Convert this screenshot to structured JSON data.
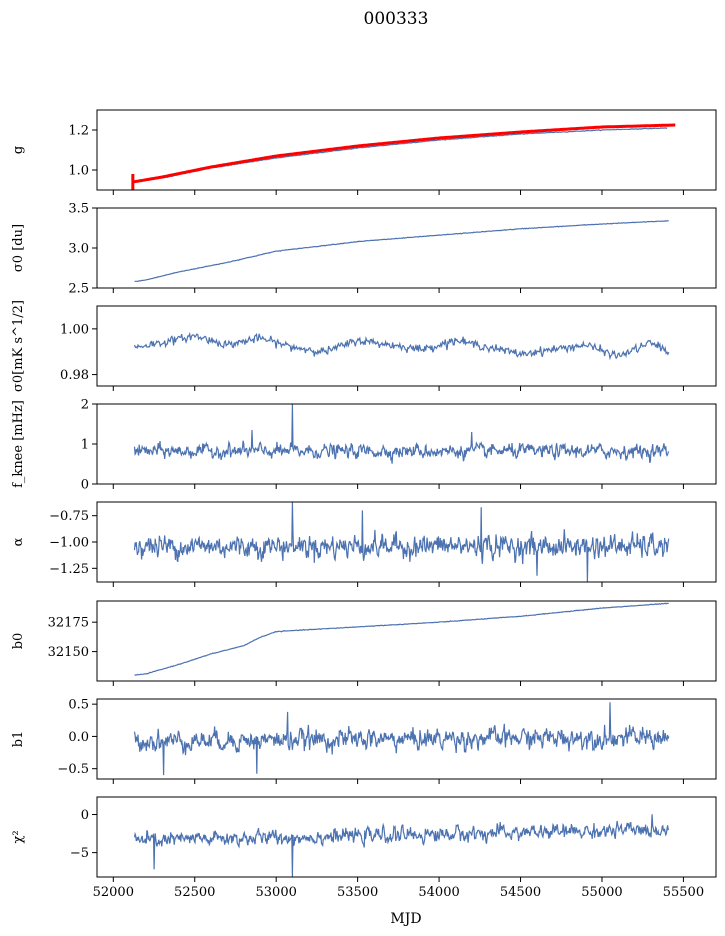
{
  "figure": {
    "title": "000333",
    "xlabel": "MJD"
  },
  "colors": {
    "series": "#4c72b0",
    "fit": "#ff0000",
    "axis": "#000000"
  },
  "chart_data": [
    {
      "type": "line",
      "ylabel": "g",
      "x_range": [
        52130,
        55410
      ],
      "xlim": [
        51900,
        55700
      ],
      "ylim": [
        0.9,
        1.3
      ],
      "yticks": [
        1.0,
        1.2
      ],
      "ytick_labels": [
        "1.0",
        "1.2"
      ],
      "series": [
        {
          "kind": "line",
          "color": "#4c72b0",
          "x": [
            52130,
            52300,
            52600,
            53000,
            53500,
            54000,
            54500,
            55000,
            55400
          ],
          "y": [
            0.94,
            0.96,
            1.01,
            1.06,
            1.11,
            1.15,
            1.18,
            1.2,
            1.21
          ]
        },
        {
          "kind": "fit",
          "color": "#ff0000",
          "x": [
            52120,
            52300,
            52600,
            53000,
            53500,
            54000,
            54500,
            55000,
            55450
          ],
          "y": [
            0.94,
            0.965,
            1.015,
            1.07,
            1.12,
            1.16,
            1.19,
            1.215,
            1.225
          ]
        }
      ]
    },
    {
      "type": "line",
      "ylabel": "σ0 [du]",
      "x_range": [
        52130,
        55410
      ],
      "xlim": [
        51900,
        55700
      ],
      "ylim": [
        2.5,
        3.5
      ],
      "yticks": [
        2.5,
        3.0,
        3.5
      ],
      "ytick_labels": [
        "2.5",
        "3.0",
        "3.5"
      ],
      "series": [
        {
          "kind": "line",
          "color": "#4c72b0",
          "x": [
            52130,
            52200,
            52400,
            52700,
            53000,
            53500,
            54000,
            54500,
            55000,
            55410
          ],
          "y": [
            2.58,
            2.6,
            2.7,
            2.82,
            2.96,
            3.08,
            3.16,
            3.24,
            3.3,
            3.34
          ]
        }
      ]
    },
    {
      "type": "line",
      "ylabel": "σ0[mK s^1/2]",
      "x_range": [
        52130,
        55410
      ],
      "xlim": [
        51900,
        55700
      ],
      "ylim": [
        0.975,
        1.01
      ],
      "yticks": [
        0.98,
        1.0
      ],
      "ytick_labels": [
        "0.98",
        "1.00"
      ],
      "series": [
        {
          "kind": "line",
          "color": "#4c72b0",
          "x": [
            52130,
            52300,
            52500,
            52700,
            52900,
            53100,
            53300,
            53500,
            53700,
            53900,
            54100,
            54300,
            54500,
            54700,
            54900,
            55100,
            55300,
            55410
          ],
          "y": [
            0.992,
            0.994,
            0.997,
            0.993,
            0.996,
            0.992,
            0.99,
            0.995,
            0.993,
            0.991,
            0.995,
            0.992,
            0.989,
            0.991,
            0.993,
            0.988,
            0.994,
            0.99
          ]
        }
      ]
    },
    {
      "type": "line",
      "ylabel": "f_knee [mHz]",
      "x_range": [
        52130,
        55410
      ],
      "xlim": [
        51900,
        55700
      ],
      "ylim": [
        0,
        2
      ],
      "yticks": [
        0,
        1,
        2
      ],
      "ytick_labels": [
        "0",
        "1",
        "2"
      ],
      "series": [
        {
          "kind": "noise",
          "color": "#4c72b0",
          "mean": 0.82,
          "amp": 0.14,
          "trend": 0.0,
          "spikes": [
            [
              53100,
              2.0
            ],
            [
              52850,
              1.35
            ],
            [
              54200,
              1.3
            ]
          ]
        }
      ]
    },
    {
      "type": "line",
      "ylabel": "α",
      "x_range": [
        52130,
        55410
      ],
      "xlim": [
        51900,
        55700
      ],
      "ylim": [
        -1.38,
        -0.62
      ],
      "yticks": [
        -1.25,
        -1.0,
        -0.75
      ],
      "ytick_labels": [
        "−1.25",
        "−1.00",
        "−0.75"
      ],
      "series": [
        {
          "kind": "noise",
          "color": "#4c72b0",
          "mean": -1.04,
          "amp": 0.09,
          "trend": 0.0,
          "spikes": [
            [
              53100,
              -0.62
            ],
            [
              53530,
              -0.7
            ],
            [
              54260,
              -0.67
            ],
            [
              54910,
              -1.4
            ],
            [
              54600,
              -1.32
            ]
          ]
        }
      ]
    },
    {
      "type": "line",
      "ylabel": "b0",
      "x_range": [
        52130,
        55410
      ],
      "xlim": [
        51900,
        55700
      ],
      "ylim": [
        32125,
        32193
      ],
      "yticks": [
        32150,
        32175
      ],
      "ytick_labels": [
        "32150",
        "32175"
      ],
      "series": [
        {
          "kind": "line",
          "color": "#4c72b0",
          "x": [
            52130,
            52200,
            52400,
            52600,
            52800,
            52900,
            53000,
            53500,
            54000,
            54500,
            55000,
            55410
          ],
          "y": [
            32130,
            32131,
            32139,
            32148,
            32155,
            32162,
            32167,
            32171,
            32175,
            32180,
            32187,
            32191
          ]
        }
      ]
    },
    {
      "type": "line",
      "ylabel": "b1",
      "x_range": [
        52130,
        55410
      ],
      "xlim": [
        51900,
        55700
      ],
      "ylim": [
        -0.66,
        0.58
      ],
      "yticks": [
        -0.5,
        0.0,
        0.5
      ],
      "ytick_labels": [
        "−0.5",
        "0.0",
        "0.5"
      ],
      "series": [
        {
          "kind": "noise",
          "color": "#4c72b0",
          "mean": -0.07,
          "amp": 0.13,
          "trend": 0.06,
          "spikes": [
            [
              55050,
              0.53
            ],
            [
              52310,
              -0.6
            ],
            [
              52880,
              -0.58
            ],
            [
              53070,
              0.38
            ]
          ]
        }
      ]
    },
    {
      "type": "line",
      "ylabel": "χ²",
      "x_range": [
        52130,
        55410
      ],
      "xlim": [
        51900,
        55700
      ],
      "ylim": [
        -8.2,
        2.3
      ],
      "yticks": [
        -5,
        0
      ],
      "ytick_labels": [
        "−5",
        "0"
      ],
      "series": [
        {
          "kind": "noise",
          "color": "#4c72b0",
          "mean": -3.4,
          "amp": 0.8,
          "trend": 1.4,
          "spikes": [
            [
              53100,
              -8.2
            ],
            [
              52250,
              -7.2
            ]
          ]
        }
      ]
    }
  ],
  "x_axis": {
    "ticks": [
      52000,
      52500,
      53000,
      53500,
      54000,
      54500,
      55000,
      55500
    ],
    "tick_labels": [
      "52000",
      "52500",
      "53000",
      "53500",
      "54000",
      "54500",
      "55000",
      "55500"
    ]
  }
}
